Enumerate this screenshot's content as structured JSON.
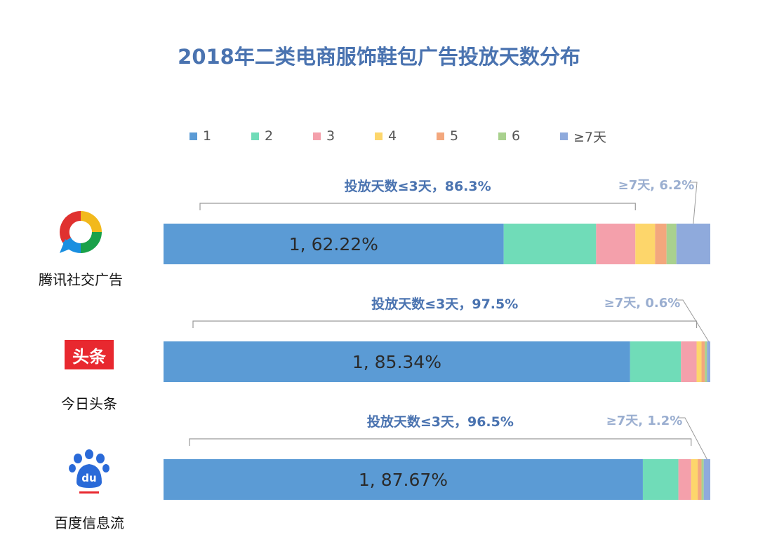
{
  "chart_data": {
    "type": "bar",
    "orientation": "horizontal",
    "stacked": true,
    "title": "2018年二类电商服饰鞋包广告投放天数分布",
    "legend": [
      "1",
      "2",
      "3",
      "4",
      "5",
      "6",
      "≥7天"
    ],
    "legend_position": "top",
    "colors": [
      "#5b9bd5",
      "#70dcb8",
      "#f4a0ab",
      "#fdd66b",
      "#f3a77d",
      "#a9d18e",
      "#8faadc"
    ],
    "categories": [
      "腾讯社交广告",
      "今日头条",
      "百度信息流"
    ],
    "series": [
      {
        "name": "1",
        "values": [
          62.22,
          85.34,
          87.67
        ]
      },
      {
        "name": "2",
        "values": [
          16.9,
          9.3,
          6.5
        ]
      },
      {
        "name": "3",
        "values": [
          7.18,
          2.86,
          2.33
        ]
      },
      {
        "name": "4",
        "values": [
          3.6,
          0.9,
          1.2
        ]
      },
      {
        "name": "5",
        "values": [
          2.1,
          0.6,
          0.7
        ]
      },
      {
        "name": "6",
        "values": [
          1.8,
          0.4,
          0.4
        ]
      },
      {
        "name": "≥7天",
        "values": [
          6.2,
          0.6,
          1.2
        ]
      }
    ],
    "bar_labels": [
      "1, 62.22%",
      "1, 85.34%",
      "1, 87.67%"
    ],
    "annotations": [
      {
        "text": "投放天数≤3天，86.3%",
        "span": "≤3"
      },
      {
        "text": "投放天数≤3天，97.5%",
        "span": "≤3"
      },
      {
        "text": "投放天数≤3天，96.5%",
        "span": "≤3"
      }
    ],
    "annotations_7": [
      "≥7天, 6.2%",
      "≥7天, 0.6%",
      "≥7天, 1.2%"
    ],
    "xlim": [
      0,
      100
    ]
  },
  "platforms": [
    {
      "label": "腾讯社交广告",
      "logo": "tencent-social-ads-logo"
    },
    {
      "label": "今日头条",
      "logo": "toutiao-logo",
      "logo_text": "头条"
    },
    {
      "label": "百度信息流",
      "logo": "baidu-logo",
      "logo_text": "du"
    }
  ]
}
